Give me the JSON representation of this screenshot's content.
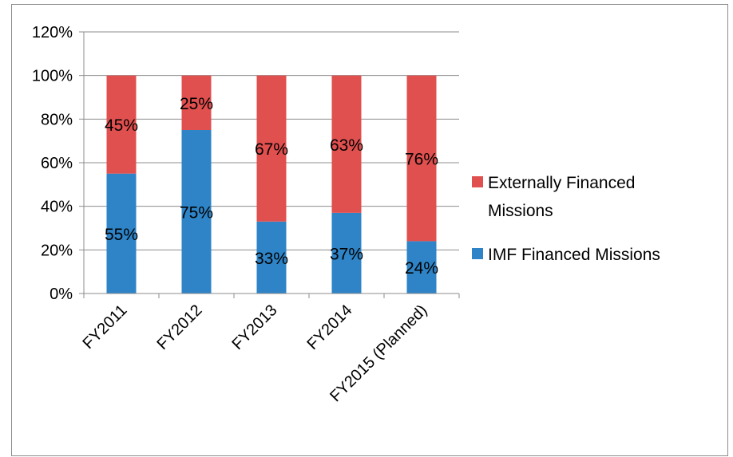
{
  "chart_data": {
    "type": "bar",
    "stacked": true,
    "categories": [
      "FY2011",
      "FY2012",
      "FY2013",
      "FY2014",
      "FY2015 (Planned)"
    ],
    "series": [
      {
        "name": "IMF Financed Missions",
        "values": [
          55,
          75,
          33,
          37,
          24
        ],
        "labels": [
          "55%",
          "75%",
          "33%",
          "37%",
          "24%"
        ],
        "color": "#2e84c6"
      },
      {
        "name": "Externally Financed Missions",
        "values": [
          45,
          25,
          67,
          63,
          76
        ],
        "labels": [
          "45%",
          "25%",
          "67%",
          "63%",
          "76%"
        ],
        "color": "#e0504f"
      }
    ],
    "y_ticks": [
      "0%",
      "20%",
      "40%",
      "60%",
      "80%",
      "100%",
      "120%"
    ],
    "ylim": [
      0,
      120
    ],
    "grid": true,
    "legend_position": "right",
    "legend": {
      "externally": [
        "Externally Financed",
        "Missions"
      ],
      "imf": "IMF Financed Missions"
    }
  }
}
